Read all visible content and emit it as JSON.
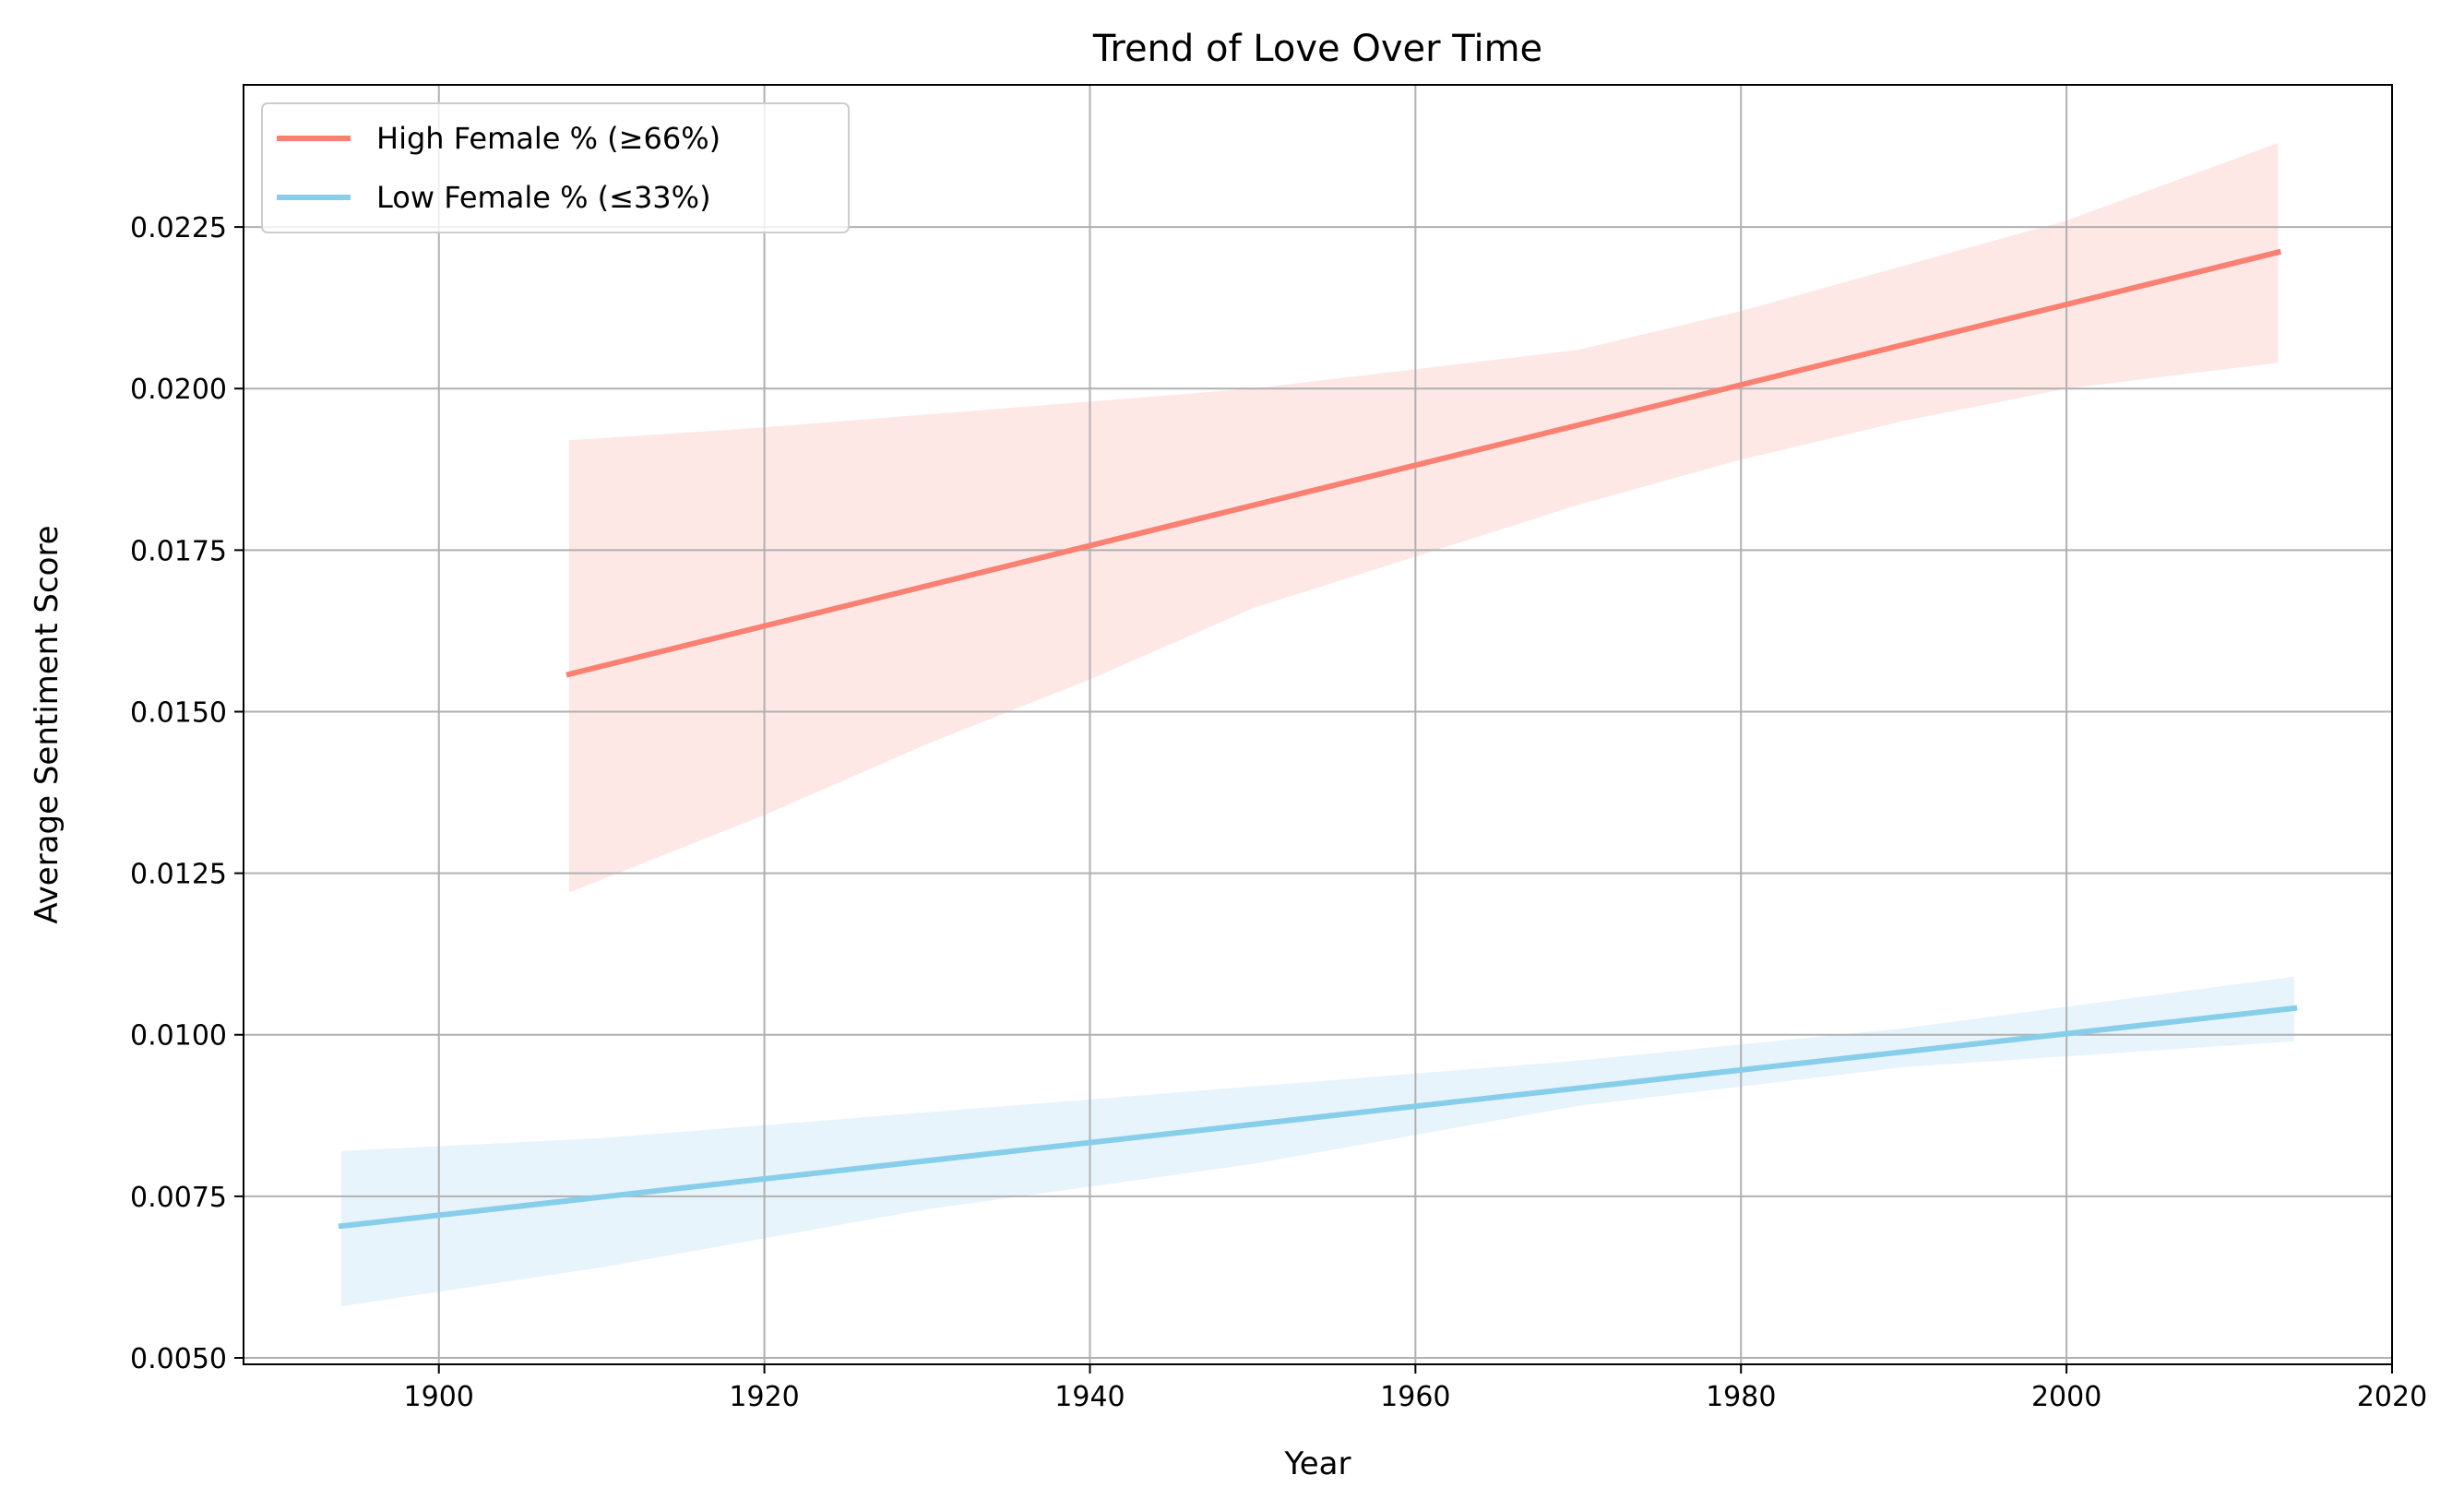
{
  "chart_data": {
    "type": "line",
    "title": "Trend of Love Over Time",
    "xlabel": "Year",
    "ylabel": "Average Sentiment Score",
    "xlim": [
      1888,
      2020
    ],
    "ylim": [
      0.0049,
      0.0247
    ],
    "x_ticks": [
      1900,
      1920,
      1940,
      1960,
      1980,
      2000,
      2020
    ],
    "x_tick_labels": [
      "1900",
      "1920",
      "1940",
      "1960",
      "1980",
      "2000",
      "2020"
    ],
    "y_ticks": [
      0.005,
      0.0075,
      0.01,
      0.0125,
      0.015,
      0.0175,
      0.02,
      0.0225
    ],
    "y_tick_labels": [
      "0.0050",
      "0.0075",
      "0.0100",
      "0.0125",
      "0.0150",
      "0.0175",
      "0.0200",
      "0.0225"
    ],
    "grid": true,
    "legend": "top-left",
    "series": [
      {
        "name": "High Female % (≥66%)",
        "color": "#fa8072",
        "band_color": "#fde8e6",
        "x": [
          1908,
          2013
        ],
        "y": [
          0.01558,
          0.02211
        ],
        "ci_x": [
          1908,
          1920,
          1930,
          1940,
          1950,
          1960,
          1970,
          1980,
          1990,
          2000,
          2013
        ],
        "ci_upper": [
          0.0192,
          0.0194,
          0.0196,
          0.0198,
          0.02,
          0.0203,
          0.0206,
          0.0212,
          0.0219,
          0.0226,
          0.0238
        ],
        "ci_lower": [
          0.0122,
          0.0134,
          0.0145,
          0.0155,
          0.0166,
          0.0174,
          0.0182,
          0.0189,
          0.0195,
          0.02,
          0.0204
        ]
      },
      {
        "name": "Low Female % (≤33%)",
        "color": "#87ceeb",
        "band_color": "#e7f4fb",
        "x": [
          1894,
          2014
        ],
        "y": [
          0.00704,
          0.01041
        ],
        "ci_x": [
          1894,
          1910,
          1930,
          1950,
          1970,
          1990,
          2014
        ],
        "ci_upper": [
          0.0082,
          0.0084,
          0.0088,
          0.0092,
          0.0096,
          0.0101,
          0.0109
        ],
        "ci_lower": [
          0.0058,
          0.0064,
          0.0073,
          0.008,
          0.0089,
          0.0095,
          0.0099
        ]
      }
    ]
  }
}
